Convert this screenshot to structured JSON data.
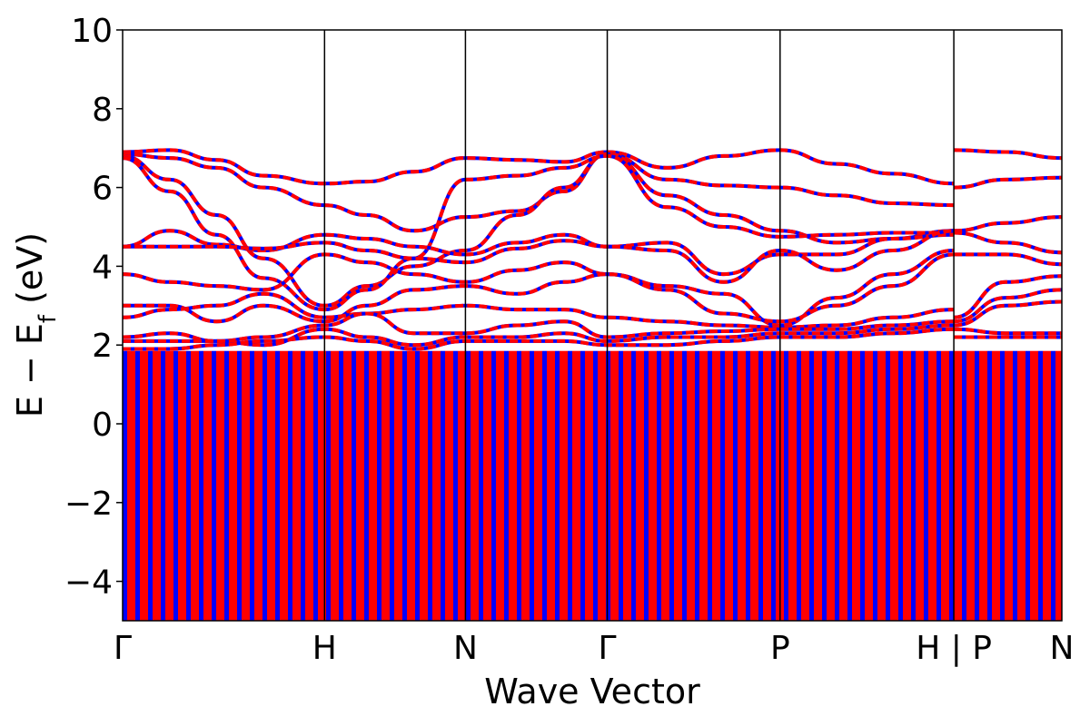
{
  "chart_data": {
    "type": "line",
    "title": "",
    "xlabel": "Wave Vector",
    "ylabel_parts": {
      "main": "E − E",
      "subscript": "f",
      "unit": " (eV)"
    },
    "ylim": [
      -5,
      10
    ],
    "yticks": [
      {
        "value": 10,
        "label": "10"
      },
      {
        "value": 8,
        "label": "8"
      },
      {
        "value": 6,
        "label": "6"
      },
      {
        "value": 4,
        "label": "4"
      },
      {
        "value": 2,
        "label": "2"
      },
      {
        "value": 0,
        "label": "0"
      },
      {
        "value": -2,
        "label": "−2"
      },
      {
        "value": -4,
        "label": "−4"
      }
    ],
    "xlim": [
      0,
      1
    ],
    "kpoints": [
      {
        "pos": 0.0,
        "label": "Γ"
      },
      {
        "pos": 0.215,
        "label": "H"
      },
      {
        "pos": 0.365,
        "label": "N"
      },
      {
        "pos": 0.516,
        "label": "Γ"
      },
      {
        "pos": 0.7,
        "label": "P"
      },
      {
        "pos": 0.885,
        "label": "H | P"
      },
      {
        "pos": 1.0,
        "label": "N"
      }
    ],
    "colors": {
      "series_a": "#0000ff",
      "series_b": "#ff0000",
      "axis": "#000000"
    },
    "dense_band_region": {
      "ymin": -5,
      "ymax": 1.85
    },
    "bands": [
      {
        "x": [
          0,
          0.05,
          0.1,
          0.15,
          0.215,
          0.26,
          0.31,
          0.365,
          0.42,
          0.47,
          0.516,
          0.58,
          0.64,
          0.7,
          0.76,
          0.82,
          0.885
        ],
        "y": [
          6.9,
          6.95,
          6.7,
          6.3,
          6.1,
          6.15,
          6.4,
          6.75,
          6.7,
          6.65,
          6.9,
          6.5,
          6.8,
          6.95,
          6.6,
          6.35,
          6.1
        ]
      },
      {
        "x": [
          0,
          0.05,
          0.1,
          0.15,
          0.215,
          0.26,
          0.31,
          0.365,
          0.42,
          0.47,
          0.516,
          0.58,
          0.64,
          0.7,
          0.76,
          0.82,
          0.885
        ],
        "y": [
          6.85,
          6.75,
          6.5,
          6.0,
          5.55,
          5.3,
          4.9,
          5.25,
          5.4,
          5.9,
          6.85,
          6.2,
          6.05,
          6.0,
          5.8,
          5.6,
          5.55
        ]
      },
      {
        "x": [
          0,
          0.05,
          0.1,
          0.15,
          0.215,
          0.26,
          0.31,
          0.365,
          0.42,
          0.47,
          0.516,
          0.58,
          0.64,
          0.7,
          0.76,
          0.82,
          0.885
        ],
        "y": [
          6.8,
          6.2,
          5.3,
          4.2,
          3.0,
          3.5,
          4.0,
          4.4,
          5.3,
          6.0,
          6.85,
          5.8,
          5.3,
          4.9,
          4.6,
          4.7,
          4.9
        ]
      },
      {
        "x": [
          0,
          0.05,
          0.1,
          0.15,
          0.215,
          0.26,
          0.31,
          0.365,
          0.42,
          0.47,
          0.516,
          0.58,
          0.64,
          0.7,
          0.76,
          0.82,
          0.885
        ],
        "y": [
          6.75,
          5.9,
          4.8,
          3.7,
          2.9,
          3.4,
          4.2,
          6.2,
          6.3,
          6.5,
          6.8,
          5.5,
          5.0,
          4.75,
          4.8,
          4.85,
          4.85
        ]
      },
      {
        "x": [
          0,
          0.05,
          0.1,
          0.15,
          0.215,
          0.26,
          0.31,
          0.365,
          0.42,
          0.47,
          0.516,
          0.58,
          0.64,
          0.7,
          0.76,
          0.82,
          0.885
        ],
        "y": [
          4.5,
          4.9,
          4.55,
          4.4,
          4.8,
          4.7,
          4.5,
          4.3,
          4.6,
          4.8,
          4.5,
          4.6,
          3.8,
          4.3,
          4.3,
          4.7,
          4.8
        ]
      },
      {
        "x": [
          0,
          0.05,
          0.1,
          0.15,
          0.215,
          0.26,
          0.31,
          0.365,
          0.42,
          0.47,
          0.516,
          0.58,
          0.64,
          0.7,
          0.76,
          0.82,
          0.885
        ],
        "y": [
          4.5,
          4.5,
          4.5,
          4.45,
          4.6,
          4.4,
          4.2,
          4.1,
          4.45,
          4.65,
          4.5,
          4.4,
          3.6,
          4.4,
          3.9,
          4.4,
          4.9
        ]
      },
      {
        "x": [
          0,
          0.05,
          0.1,
          0.15,
          0.215,
          0.26,
          0.31,
          0.365,
          0.42,
          0.47,
          0.516,
          0.58,
          0.64,
          0.7,
          0.76,
          0.82,
          0.885
        ],
        "y": [
          3.8,
          3.6,
          3.5,
          3.4,
          4.3,
          4.1,
          3.8,
          3.6,
          3.9,
          4.1,
          3.8,
          3.5,
          3.3,
          2.5,
          3.2,
          3.8,
          4.4
        ]
      },
      {
        "x": [
          0,
          0.05,
          0.1,
          0.15,
          0.215,
          0.26,
          0.31,
          0.365,
          0.42,
          0.47,
          0.516,
          0.58,
          0.64,
          0.7,
          0.76,
          0.82,
          0.885
        ],
        "y": [
          3.0,
          3.0,
          2.6,
          3.0,
          2.6,
          3.0,
          3.4,
          3.5,
          3.3,
          3.6,
          3.8,
          3.4,
          2.8,
          2.6,
          3.0,
          3.5,
          4.3
        ]
      },
      {
        "x": [
          0,
          0.05,
          0.1,
          0.15,
          0.215,
          0.26,
          0.31,
          0.365,
          0.42,
          0.47,
          0.516,
          0.58,
          0.64,
          0.7,
          0.76,
          0.82,
          0.885
        ],
        "y": [
          2.7,
          2.9,
          3.0,
          3.3,
          2.7,
          2.8,
          2.9,
          3.0,
          2.9,
          2.9,
          2.7,
          2.6,
          2.5,
          2.45,
          2.5,
          2.7,
          2.9
        ]
      },
      {
        "x": [
          0,
          0.05,
          0.1,
          0.15,
          0.215,
          0.26,
          0.31,
          0.365,
          0.42,
          0.47,
          0.516,
          0.58,
          0.64,
          0.7,
          0.76,
          0.82,
          0.885
        ],
        "y": [
          2.2,
          2.3,
          2.1,
          2.2,
          2.5,
          2.8,
          2.3,
          2.3,
          2.5,
          2.6,
          2.2,
          2.3,
          2.35,
          2.4,
          2.4,
          2.5,
          2.6
        ]
      },
      {
        "x": [
          0,
          0.05,
          0.1,
          0.15,
          0.215,
          0.26,
          0.31,
          0.365,
          0.42,
          0.47,
          0.516,
          0.58,
          0.64,
          0.7,
          0.76,
          0.82,
          0.885
        ],
        "y": [
          2.1,
          2.1,
          2.1,
          2.0,
          2.4,
          2.2,
          2.0,
          2.2,
          2.2,
          2.3,
          2.1,
          2.2,
          2.2,
          2.3,
          2.3,
          2.4,
          2.5
        ]
      },
      {
        "x": [
          0,
          0.05,
          0.1,
          0.15,
          0.215,
          0.26,
          0.31,
          0.365,
          0.42,
          0.47,
          0.516,
          0.58,
          0.64,
          0.7,
          0.76,
          0.82,
          0.885
        ],
        "y": [
          1.9,
          1.9,
          2.0,
          2.1,
          2.2,
          2.1,
          1.9,
          2.1,
          2.1,
          2.1,
          2.0,
          2.0,
          2.1,
          2.2,
          2.2,
          2.3,
          2.4
        ]
      },
      {
        "x": [
          0.885,
          0.94,
          1.0
        ],
        "y": [
          6.95,
          6.9,
          6.75
        ]
      },
      {
        "x": [
          0.885,
          0.94,
          1.0
        ],
        "y": [
          6.0,
          6.2,
          6.25
        ]
      },
      {
        "x": [
          0.885,
          0.94,
          1.0
        ],
        "y": [
          4.9,
          5.1,
          5.25
        ]
      },
      {
        "x": [
          0.885,
          0.94,
          1.0
        ],
        "y": [
          4.85,
          4.6,
          4.35
        ]
      },
      {
        "x": [
          0.885,
          0.94,
          1.0
        ],
        "y": [
          4.3,
          4.3,
          4.05
        ]
      },
      {
        "x": [
          0.885,
          0.94,
          1.0
        ],
        "y": [
          2.7,
          3.6,
          3.75
        ]
      },
      {
        "x": [
          0.885,
          0.94,
          1.0
        ],
        "y": [
          2.6,
          3.2,
          3.4
        ]
      },
      {
        "x": [
          0.885,
          0.94,
          1.0
        ],
        "y": [
          2.5,
          3.0,
          3.1
        ]
      },
      {
        "x": [
          0.885,
          0.94,
          1.0
        ],
        "y": [
          2.4,
          2.3,
          2.3
        ]
      },
      {
        "x": [
          0.885,
          0.94,
          1.0
        ],
        "y": [
          2.2,
          2.2,
          2.2
        ]
      }
    ]
  }
}
